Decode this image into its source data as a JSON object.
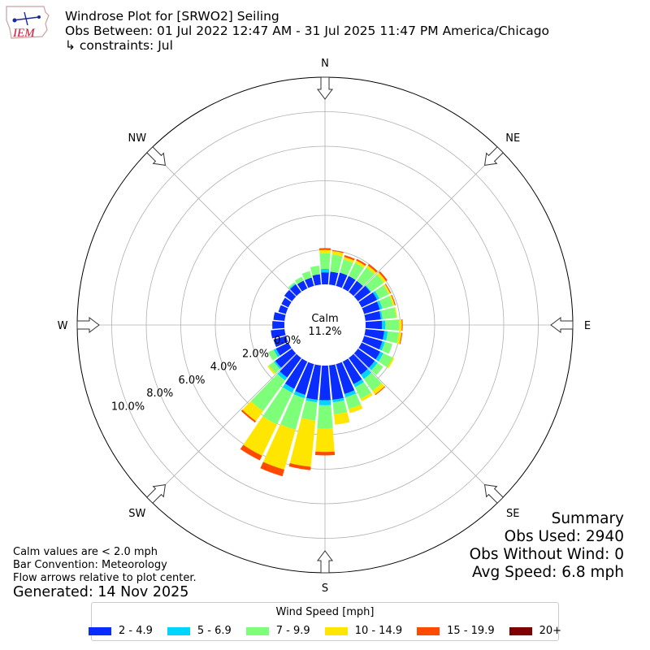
{
  "header": {
    "logo_text": "IEM",
    "title": "Windrose Plot for [SRWO2] Seiling",
    "period": "Obs Between: 01 Jul 2022 12:47 AM - 31 Jul 2025 11:47 PM America/Chicago",
    "constraints": "↳ constraints: Jul"
  },
  "summary": {
    "heading": "Summary",
    "obs_used": "Obs Used: 2940",
    "obs_without_wind": "Obs Without Wind: 0",
    "avg_speed": "Avg Speed: 6.8 mph"
  },
  "notes": {
    "calm_note": "Calm values are < 2.0 mph",
    "bar_convention": "Bar Convention: Meteorology",
    "flow_arrows": "Flow arrows relative to plot center.",
    "generated": "Generated: 14 Nov 2025"
  },
  "chart_data": {
    "type": "windrose",
    "calm_label": "Calm",
    "calm_value": "11.2%",
    "calm_percent": 11.2,
    "radial_ticks": [
      "0.0%",
      "2.0%",
      "4.0%",
      "6.0%",
      "8.0%",
      "10.0%"
    ],
    "radial_tick_values": [
      0,
      2,
      4,
      6,
      8,
      10
    ],
    "rmax": 12,
    "compass_labels": [
      "N",
      "NE",
      "E",
      "SE",
      "S",
      "SW",
      "W",
      "NW"
    ],
    "legend_title": "Wind Speed [mph]",
    "bins": [
      {
        "label": "2 - 4.9",
        "color": "#0a2dff"
      },
      {
        "label": "5 - 6.9",
        "color": "#00d4ff"
      },
      {
        "label": "7 - 9.9",
        "color": "#7dff7a"
      },
      {
        "label": "10 - 14.9",
        "color": "#ffe600"
      },
      {
        "label": "15 - 19.9",
        "color": "#ff4a00"
      },
      {
        "label": "20+",
        "color": "#7f0000"
      }
    ],
    "directions_deg": [
      0,
      10,
      20,
      30,
      40,
      50,
      60,
      70,
      80,
      90,
      100,
      110,
      120,
      130,
      140,
      150,
      160,
      170,
      180,
      190,
      200,
      210,
      220,
      230,
      240,
      250,
      260,
      270,
      280,
      290,
      300,
      310,
      320,
      330,
      340,
      350
    ],
    "cumulative_percent": [
      [
        0.7,
        0.9,
        1.8,
        2.0,
        2.1,
        2.1
      ],
      [
        0.75,
        0.75,
        1.75,
        1.95,
        2.0,
        2.0
      ],
      [
        0.8,
        0.8,
        1.6,
        1.75,
        1.85,
        1.85
      ],
      [
        0.8,
        0.8,
        1.65,
        1.8,
        1.9,
        1.9
      ],
      [
        0.8,
        0.8,
        1.75,
        1.9,
        2.0,
        2.0
      ],
      [
        0.9,
        0.95,
        1.85,
        2.0,
        2.1,
        2.1
      ],
      [
        1.0,
        1.15,
        1.75,
        1.85,
        1.9,
        1.9
      ],
      [
        0.95,
        1.1,
        1.75,
        1.85,
        1.9,
        1.9
      ],
      [
        0.9,
        1.0,
        1.8,
        1.85,
        1.85,
        1.85
      ],
      [
        0.95,
        1.15,
        1.95,
        2.1,
        2.15,
        2.15
      ],
      [
        1.1,
        1.3,
        1.95,
        2.1,
        2.15,
        2.15
      ],
      [
        1.1,
        1.25,
        1.7,
        1.7,
        1.7,
        1.7
      ],
      [
        1.2,
        1.4,
        2.0,
        2.1,
        2.1,
        2.1
      ],
      [
        1.2,
        1.4,
        1.8,
        1.8,
        1.8,
        1.8
      ],
      [
        1.2,
        1.5,
        2.35,
        2.6,
        2.65,
        2.65
      ],
      [
        1.45,
        1.65,
        2.4,
        2.55,
        2.55,
        2.55
      ],
      [
        1.8,
        2.0,
        2.7,
        2.95,
        2.95,
        2.95
      ],
      [
        2.0,
        2.15,
        2.85,
        3.45,
        3.45,
        3.45
      ],
      [
        2.0,
        2.3,
        3.65,
        5.0,
        5.2,
        5.2
      ],
      [
        2.0,
        2.15,
        3.2,
        5.9,
        6.1,
        6.1
      ],
      [
        1.85,
        2.05,
        3.95,
        6.35,
        6.75,
        6.75
      ],
      [
        1.75,
        2.0,
        4.05,
        6.05,
        6.35,
        6.35
      ],
      [
        1.4,
        1.6,
        3.8,
        4.5,
        4.6,
        4.6
      ],
      [
        1.2,
        1.3,
        1.65,
        1.75,
        1.75,
        1.75
      ],
      [
        0.8,
        0.95,
        1.3,
        1.3,
        1.3,
        1.3
      ],
      [
        0.75,
        0.75,
        0.75,
        0.75,
        0.75,
        0.75
      ],
      [
        0.8,
        0.8,
        0.8,
        0.8,
        0.8,
        0.8
      ],
      [
        0.7,
        0.7,
        0.7,
        0.7,
        0.7,
        0.7
      ],
      [
        0.65,
        0.65,
        0.65,
        0.65,
        0.65,
        0.65
      ],
      [
        0.45,
        0.45,
        0.45,
        0.45,
        0.45,
        0.45
      ],
      [
        0.45,
        0.45,
        0.45,
        0.45,
        0.45,
        0.45
      ],
      [
        0.55,
        0.55,
        0.55,
        0.55,
        0.55,
        0.55
      ],
      [
        0.55,
        0.6,
        0.7,
        0.7,
        0.7,
        0.7
      ],
      [
        0.5,
        0.5,
        0.75,
        0.75,
        0.75,
        0.75
      ],
      [
        0.5,
        0.5,
        0.9,
        0.9,
        0.9,
        0.9
      ],
      [
        0.6,
        0.6,
        1.1,
        1.1,
        1.1,
        1.1
      ]
    ]
  }
}
